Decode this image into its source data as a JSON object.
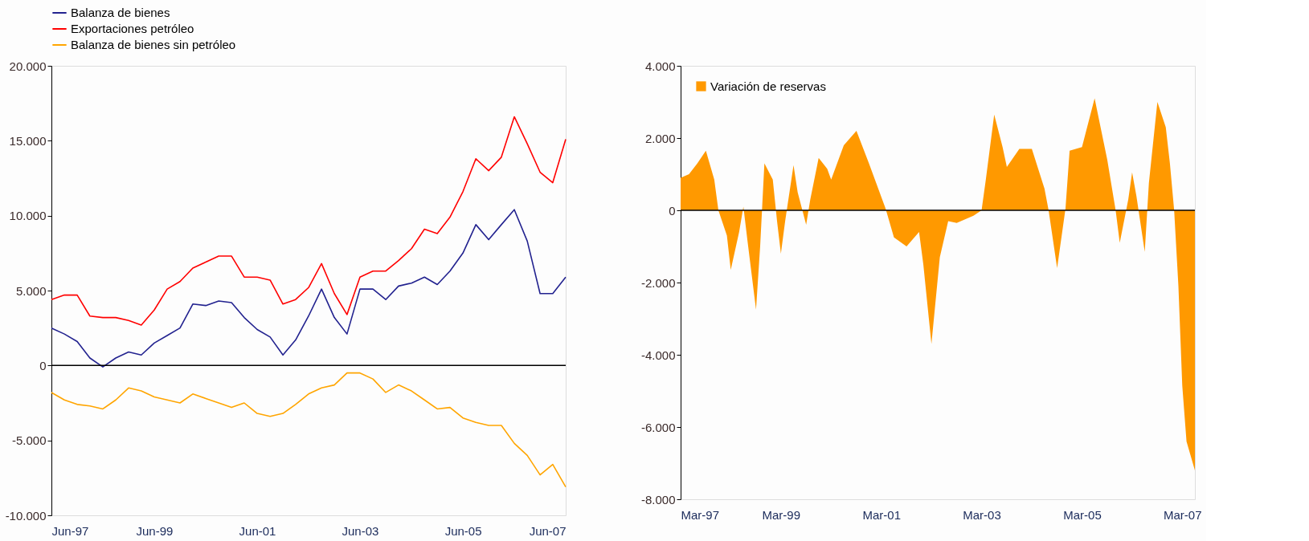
{
  "chart_data": [
    {
      "type": "line",
      "x": [
        "1997-06",
        "1997-09",
        "1997-12",
        "1998-03",
        "1998-06",
        "1998-09",
        "1998-12",
        "1999-03",
        "1999-06",
        "1999-09",
        "1999-12",
        "2000-03",
        "2000-06",
        "2000-09",
        "2000-12",
        "2001-03",
        "2001-06",
        "2001-09",
        "2001-12",
        "2002-03",
        "2002-06",
        "2002-09",
        "2002-12",
        "2003-03",
        "2003-06",
        "2003-09",
        "2003-12",
        "2004-03",
        "2004-06",
        "2004-09",
        "2004-12",
        "2005-03",
        "2005-06",
        "2005-09",
        "2005-12",
        "2006-03",
        "2006-06",
        "2006-09",
        "2006-12",
        "2007-03",
        "2007-06"
      ],
      "series": [
        {
          "name": "Balanza de bienes",
          "color": "#22228f",
          "values": [
            2500,
            2100,
            1600,
            500,
            -100,
            500,
            900,
            700,
            1500,
            2000,
            2500,
            4100,
            4000,
            4300,
            4200,
            3200,
            2400,
            1900,
            700,
            1700,
            3300,
            5100,
            3200,
            2100,
            5100,
            5100,
            4400,
            5300,
            5500,
            5900,
            5400,
            6300,
            7500,
            9400,
            8400,
            9400,
            10400,
            8300,
            4800,
            4800,
            5900
          ]
        },
        {
          "name": "Exportaciones petróleo",
          "color": "#ff0000",
          "values": [
            4400,
            4700,
            4700,
            3300,
            3200,
            3200,
            3000,
            2700,
            3700,
            5100,
            5600,
            6500,
            6900,
            7300,
            7300,
            5900,
            5900,
            5700,
            4100,
            4400,
            5200,
            6800,
            4800,
            3400,
            5900,
            6300,
            6300,
            7000,
            7800,
            9100,
            8800,
            9900,
            11600,
            13800,
            13000,
            13900,
            16600,
            14800,
            12900,
            12200,
            15100
          ]
        },
        {
          "name": "Balanza de bienes sin petróleo",
          "color": "#ffa500",
          "values": [
            -1800,
            -2300,
            -2600,
            -2700,
            -2900,
            -2300,
            -1500,
            -1700,
            -2100,
            -2300,
            -2500,
            -1900,
            -2200,
            -2500,
            -2800,
            -2500,
            -3200,
            -3400,
            -3200,
            -2600,
            -1900,
            -1500,
            -1300,
            -500,
            -500,
            -900,
            -1800,
            -1300,
            -1700,
            -2300,
            -2900,
            -2800,
            -3500,
            -3800,
            -4000,
            -4000,
            -5200,
            -6000,
            -7300,
            -6600,
            -8100
          ]
        }
      ],
      "xlim": [
        "1997-06",
        "2007-06"
      ],
      "xticks": [
        {
          "value": "1997-06",
          "label": "Jun-97"
        },
        {
          "value": "1999-06",
          "label": "Jun-99"
        },
        {
          "value": "2001-06",
          "label": "Jun-01"
        },
        {
          "value": "2003-06",
          "label": "Jun-03"
        },
        {
          "value": "2005-06",
          "label": "Jun-05"
        },
        {
          "value": "2007-06",
          "label": "Jun-07"
        }
      ],
      "ylim": [
        -10000,
        20000
      ],
      "yticks": [
        {
          "value": -10000,
          "label": "-10.000"
        },
        {
          "value": -5000,
          "label": "-5.000"
        },
        0,
        {
          "value": 5000,
          "label": "5.000"
        },
        {
          "value": 10000,
          "label": "10.000"
        },
        {
          "value": 15000,
          "label": "15.000"
        },
        {
          "value": 20000,
          "label": "20.000"
        }
      ],
      "ref_lines": [
        {
          "axis": "y",
          "value": 0,
          "color": "#000000"
        }
      ],
      "legend": "top",
      "grid": false
    },
    {
      "type": "area",
      "x": [
        "1997-03",
        "1997-05",
        "1997-07",
        "1997-09",
        "1997-11",
        "1997-12",
        "1998-02",
        "1998-03",
        "1998-05",
        "1998-06",
        "1998-07",
        "1998-09",
        "1998-10",
        "1998-11",
        "1999-01",
        "1999-02",
        "1999-03",
        "1999-04",
        "1999-06",
        "1999-07",
        "1999-09",
        "1999-10",
        "1999-12",
        "2000-02",
        "2000-03",
        "2000-06",
        "2000-09",
        "2000-12",
        "2001-04",
        "2001-06",
        "2001-09",
        "2001-12",
        "2002-01",
        "2002-03",
        "2002-05",
        "2002-07",
        "2002-09",
        "2003-01",
        "2003-03",
        "2003-04",
        "2003-06",
        "2003-08",
        "2003-09",
        "2003-12",
        "2004-03",
        "2004-06",
        "2004-07",
        "2004-09",
        "2004-11",
        "2004-12",
        "2005-03",
        "2005-06",
        "2005-09",
        "2005-11",
        "2005-12",
        "2006-02",
        "2006-03",
        "2006-04",
        "2006-06",
        "2006-07",
        "2006-09",
        "2006-11",
        "2006-12",
        "2007-01",
        "2007-02",
        "2007-03",
        "2007-04",
        "2007-06"
      ],
      "series": [
        {
          "name": "Variación de reservas",
          "color": "#ff9900",
          "values": [
            900,
            1000,
            1300,
            1650,
            850,
            0,
            -700,
            -1650,
            -600,
            100,
            -850,
            -2750,
            -1000,
            1300,
            850,
            -300,
            -1200,
            -300,
            1250,
            500,
            -400,
            300,
            1450,
            1150,
            850,
            1800,
            2200,
            1300,
            50,
            -750,
            -1000,
            -600,
            -1500,
            -3700,
            -1300,
            -300,
            -350,
            -150,
            0,
            850,
            2650,
            1750,
            1200,
            1700,
            1700,
            600,
            0,
            -1600,
            50,
            1650,
            1750,
            3100,
            1400,
            0,
            -900,
            300,
            1050,
            400,
            -1150,
            750,
            3000,
            2300,
            1300,
            0,
            -2100,
            -4850,
            -6400,
            -7200
          ]
        }
      ],
      "xlim": [
        "1997-03",
        "2007-06"
      ],
      "xticks": [
        {
          "value": "1997-03",
          "label": "Mar-97"
        },
        {
          "value": "1999-03",
          "label": "Mar-99"
        },
        {
          "value": "2001-03",
          "label": "Mar-01"
        },
        {
          "value": "2003-03",
          "label": "Mar-03"
        },
        {
          "value": "2005-03",
          "label": "Mar-05"
        },
        {
          "value": "2007-03",
          "label": "Mar-07"
        }
      ],
      "ylim": [
        -8000,
        4000
      ],
      "yticks": [
        {
          "value": -8000,
          "label": "-8.000"
        },
        {
          "value": -6000,
          "label": "-6.000"
        },
        {
          "value": -4000,
          "label": "-4.000"
        },
        {
          "value": -2000,
          "label": "-2.000"
        },
        0,
        {
          "value": 2000,
          "label": "2.000"
        },
        {
          "value": 4000,
          "label": "4.000"
        }
      ],
      "ref_lines": [
        {
          "axis": "y",
          "value": 0,
          "color": "#000000"
        }
      ],
      "legend": "top left",
      "grid": false
    }
  ]
}
